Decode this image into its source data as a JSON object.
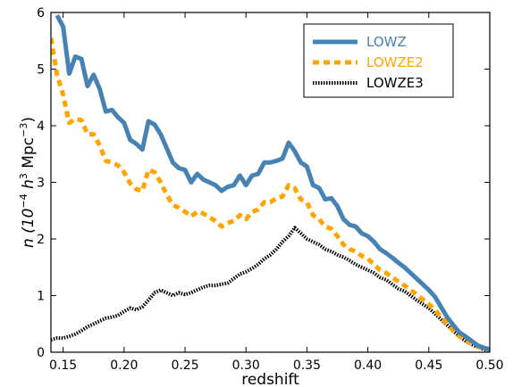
{
  "chart_data": {
    "type": "line",
    "xlabel": "redshift",
    "ylabel": "n (10^-4 h^3 Mpc^-3)",
    "ylabel_parts": {
      "pre": "n (10",
      "exp1": "−4",
      "mid": " h",
      "exp2": "3",
      "unit": " Mpc",
      "exp3": "−3",
      "post": ")"
    },
    "xlim": [
      0.14,
      0.5
    ],
    "ylim": [
      0,
      6
    ],
    "xticks": [
      0.15,
      0.2,
      0.25,
      0.3,
      0.35,
      0.4,
      0.45,
      0.5
    ],
    "xtick_labels": [
      "0.15",
      "0.20",
      "0.25",
      "0.30",
      "0.35",
      "0.40",
      "0.45",
      "0.50"
    ],
    "yticks": [
      0,
      1,
      2,
      3,
      4,
      5,
      6
    ],
    "ytick_labels": [
      "0",
      "1",
      "2",
      "3",
      "4",
      "5",
      "6"
    ],
    "grid": false,
    "legend_position": "top-right",
    "series": [
      {
        "name": "LOWZ",
        "color": "#4682b4",
        "style": "solid",
        "points": [
          [
            0.145,
            5.95
          ],
          [
            0.15,
            5.75
          ],
          [
            0.155,
            4.92
          ],
          [
            0.16,
            5.22
          ],
          [
            0.165,
            5.18
          ],
          [
            0.17,
            4.7
          ],
          [
            0.175,
            4.9
          ],
          [
            0.18,
            4.65
          ],
          [
            0.185,
            4.25
          ],
          [
            0.19,
            4.28
          ],
          [
            0.195,
            4.15
          ],
          [
            0.2,
            4.05
          ],
          [
            0.205,
            3.75
          ],
          [
            0.21,
            3.68
          ],
          [
            0.215,
            3.58
          ],
          [
            0.22,
            4.08
          ],
          [
            0.225,
            4.02
          ],
          [
            0.23,
            3.85
          ],
          [
            0.235,
            3.6
          ],
          [
            0.24,
            3.35
          ],
          [
            0.245,
            3.25
          ],
          [
            0.25,
            3.22
          ],
          [
            0.255,
            3.0
          ],
          [
            0.26,
            3.15
          ],
          [
            0.265,
            3.05
          ],
          [
            0.27,
            3.0
          ],
          [
            0.275,
            2.95
          ],
          [
            0.28,
            2.85
          ],
          [
            0.285,
            2.92
          ],
          [
            0.29,
            2.95
          ],
          [
            0.295,
            3.12
          ],
          [
            0.3,
            2.95
          ],
          [
            0.305,
            3.12
          ],
          [
            0.31,
            3.15
          ],
          [
            0.315,
            3.35
          ],
          [
            0.32,
            3.35
          ],
          [
            0.325,
            3.38
          ],
          [
            0.33,
            3.42
          ],
          [
            0.335,
            3.7
          ],
          [
            0.34,
            3.55
          ],
          [
            0.345,
            3.35
          ],
          [
            0.35,
            3.28
          ],
          [
            0.355,
            2.95
          ],
          [
            0.36,
            2.9
          ],
          [
            0.365,
            2.7
          ],
          [
            0.37,
            2.72
          ],
          [
            0.375,
            2.58
          ],
          [
            0.38,
            2.35
          ],
          [
            0.385,
            2.25
          ],
          [
            0.39,
            2.22
          ],
          [
            0.395,
            2.1
          ],
          [
            0.4,
            2.05
          ],
          [
            0.405,
            1.95
          ],
          [
            0.41,
            1.82
          ],
          [
            0.415,
            1.75
          ],
          [
            0.42,
            1.67
          ],
          [
            0.425,
            1.58
          ],
          [
            0.43,
            1.5
          ],
          [
            0.435,
            1.4
          ],
          [
            0.44,
            1.3
          ],
          [
            0.445,
            1.2
          ],
          [
            0.45,
            1.1
          ],
          [
            0.455,
            0.98
          ],
          [
            0.46,
            0.8
          ],
          [
            0.465,
            0.62
          ],
          [
            0.47,
            0.48
          ],
          [
            0.475,
            0.35
          ],
          [
            0.48,
            0.28
          ],
          [
            0.485,
            0.2
          ],
          [
            0.49,
            0.12
          ],
          [
            0.495,
            0.08
          ],
          [
            0.5,
            0.05
          ]
        ]
      },
      {
        "name": "LOWZE2",
        "color": "#ffa500",
        "style": "dashed",
        "points": [
          [
            0.14,
            5.55
          ],
          [
            0.145,
            4.9
          ],
          [
            0.15,
            4.55
          ],
          [
            0.155,
            4.05
          ],
          [
            0.16,
            4.12
          ],
          [
            0.165,
            4.1
          ],
          [
            0.17,
            3.85
          ],
          [
            0.175,
            3.85
          ],
          [
            0.18,
            3.65
          ],
          [
            0.185,
            3.38
          ],
          [
            0.19,
            3.35
          ],
          [
            0.195,
            3.3
          ],
          [
            0.2,
            3.18
          ],
          [
            0.205,
            2.98
          ],
          [
            0.21,
            2.88
          ],
          [
            0.215,
            2.85
          ],
          [
            0.22,
            3.22
          ],
          [
            0.225,
            3.18
          ],
          [
            0.23,
            3.0
          ],
          [
            0.235,
            2.78
          ],
          [
            0.24,
            2.6
          ],
          [
            0.245,
            2.55
          ],
          [
            0.25,
            2.48
          ],
          [
            0.255,
            2.4
          ],
          [
            0.26,
            2.48
          ],
          [
            0.265,
            2.45
          ],
          [
            0.27,
            2.38
          ],
          [
            0.275,
            2.32
          ],
          [
            0.28,
            2.22
          ],
          [
            0.285,
            2.28
          ],
          [
            0.29,
            2.32
          ],
          [
            0.295,
            2.42
          ],
          [
            0.3,
            2.35
          ],
          [
            0.305,
            2.48
          ],
          [
            0.31,
            2.52
          ],
          [
            0.315,
            2.65
          ],
          [
            0.32,
            2.65
          ],
          [
            0.325,
            2.72
          ],
          [
            0.33,
            2.75
          ],
          [
            0.335,
            2.95
          ],
          [
            0.34,
            2.9
          ],
          [
            0.345,
            2.7
          ],
          [
            0.35,
            2.65
          ],
          [
            0.355,
            2.42
          ],
          [
            0.36,
            2.35
          ],
          [
            0.365,
            2.22
          ],
          [
            0.37,
            2.18
          ],
          [
            0.375,
            2.05
          ],
          [
            0.38,
            1.9
          ],
          [
            0.385,
            1.82
          ],
          [
            0.39,
            1.78
          ],
          [
            0.395,
            1.7
          ],
          [
            0.4,
            1.65
          ],
          [
            0.405,
            1.55
          ],
          [
            0.41,
            1.45
          ],
          [
            0.415,
            1.4
          ],
          [
            0.42,
            1.32
          ],
          [
            0.425,
            1.25
          ],
          [
            0.43,
            1.18
          ],
          [
            0.435,
            1.1
          ],
          [
            0.44,
            1.02
          ],
          [
            0.445,
            0.93
          ],
          [
            0.45,
            0.85
          ],
          [
            0.455,
            0.75
          ],
          [
            0.46,
            0.62
          ],
          [
            0.465,
            0.5
          ],
          [
            0.47,
            0.38
          ],
          [
            0.475,
            0.28
          ],
          [
            0.48,
            0.22
          ],
          [
            0.485,
            0.15
          ],
          [
            0.49,
            0.1
          ],
          [
            0.495,
            0.06
          ],
          [
            0.5,
            0.04
          ]
        ]
      },
      {
        "name": "LOWZE3",
        "color": "#000000",
        "style": "dotted",
        "points": [
          [
            0.14,
            0.22
          ],
          [
            0.145,
            0.25
          ],
          [
            0.15,
            0.25
          ],
          [
            0.155,
            0.28
          ],
          [
            0.16,
            0.32
          ],
          [
            0.165,
            0.38
          ],
          [
            0.17,
            0.45
          ],
          [
            0.175,
            0.5
          ],
          [
            0.18,
            0.55
          ],
          [
            0.185,
            0.6
          ],
          [
            0.19,
            0.62
          ],
          [
            0.195,
            0.65
          ],
          [
            0.2,
            0.72
          ],
          [
            0.205,
            0.78
          ],
          [
            0.21,
            0.75
          ],
          [
            0.215,
            0.8
          ],
          [
            0.22,
            0.92
          ],
          [
            0.225,
            1.05
          ],
          [
            0.23,
            1.1
          ],
          [
            0.235,
            1.05
          ],
          [
            0.24,
            1.0
          ],
          [
            0.245,
            1.05
          ],
          [
            0.25,
            1.02
          ],
          [
            0.255,
            1.05
          ],
          [
            0.26,
            1.1
          ],
          [
            0.265,
            1.15
          ],
          [
            0.27,
            1.18
          ],
          [
            0.275,
            1.18
          ],
          [
            0.28,
            1.2
          ],
          [
            0.285,
            1.22
          ],
          [
            0.29,
            1.3
          ],
          [
            0.295,
            1.38
          ],
          [
            0.3,
            1.42
          ],
          [
            0.305,
            1.48
          ],
          [
            0.31,
            1.55
          ],
          [
            0.315,
            1.65
          ],
          [
            0.32,
            1.72
          ],
          [
            0.325,
            1.82
          ],
          [
            0.33,
            1.95
          ],
          [
            0.335,
            2.05
          ],
          [
            0.34,
            2.2
          ],
          [
            0.345,
            2.1
          ],
          [
            0.35,
            2.0
          ],
          [
            0.355,
            1.95
          ],
          [
            0.36,
            1.9
          ],
          [
            0.365,
            1.82
          ],
          [
            0.37,
            1.78
          ],
          [
            0.375,
            1.72
          ],
          [
            0.38,
            1.68
          ],
          [
            0.385,
            1.62
          ],
          [
            0.39,
            1.55
          ],
          [
            0.395,
            1.5
          ],
          [
            0.4,
            1.45
          ],
          [
            0.405,
            1.4
          ],
          [
            0.41,
            1.32
          ],
          [
            0.415,
            1.28
          ],
          [
            0.42,
            1.2
          ],
          [
            0.425,
            1.12
          ],
          [
            0.43,
            1.08
          ],
          [
            0.435,
            1.0
          ],
          [
            0.44,
            0.92
          ],
          [
            0.445,
            0.85
          ],
          [
            0.45,
            0.78
          ],
          [
            0.455,
            0.68
          ],
          [
            0.46,
            0.58
          ],
          [
            0.465,
            0.48
          ],
          [
            0.47,
            0.38
          ],
          [
            0.475,
            0.28
          ],
          [
            0.48,
            0.2
          ],
          [
            0.485,
            0.14
          ],
          [
            0.49,
            0.09
          ],
          [
            0.495,
            0.05
          ],
          [
            0.5,
            0.03
          ]
        ]
      }
    ]
  }
}
